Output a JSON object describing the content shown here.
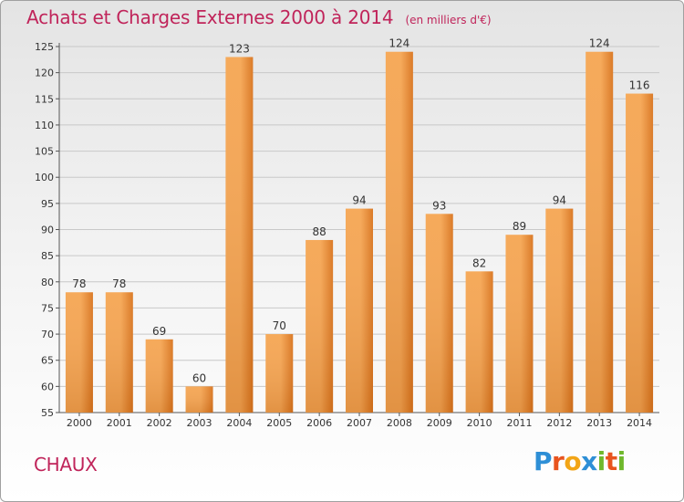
{
  "title": "Achats et Charges Externes 2000 à 2014",
  "unit_note": "(en milliers d'€)",
  "commune": "CHAUX",
  "logo": {
    "text": "Proxiti",
    "letters": [
      {
        "ch": "P",
        "color": "#2e8fd6"
      },
      {
        "ch": "r",
        "color": "#e8541e"
      },
      {
        "ch": "o",
        "color": "#f2a516"
      },
      {
        "ch": "x",
        "color": "#2e8fd6"
      },
      {
        "ch": "i",
        "color": "#6fb82c"
      },
      {
        "ch": "t",
        "color": "#e8541e"
      },
      {
        "ch": "i",
        "color": "#6fb82c"
      }
    ]
  },
  "colors": {
    "title": "#c0245a",
    "bar_light": "#f5a552",
    "bar_dark": "#d9741d",
    "grid": "#c8c8c8"
  },
  "chart_data": {
    "type": "bar",
    "categories": [
      "2000",
      "2001",
      "2002",
      "2003",
      "2004",
      "2005",
      "2006",
      "2007",
      "2008",
      "2009",
      "2010",
      "2011",
      "2012",
      "2013",
      "2014"
    ],
    "values": [
      78,
      78,
      69,
      60,
      123,
      70,
      88,
      94,
      124,
      93,
      82,
      89,
      94,
      124,
      116
    ],
    "value_labels": [
      "78",
      "78",
      "69",
      "60",
      "123",
      "70",
      "88",
      "94",
      "124",
      "93",
      "82",
      "89",
      "94",
      "124",
      "116"
    ],
    "ylim": [
      55,
      125
    ],
    "yticks": [
      55,
      60,
      65,
      70,
      75,
      80,
      85,
      90,
      95,
      100,
      105,
      110,
      115,
      120,
      125
    ],
    "grid": true,
    "legend": "none"
  }
}
